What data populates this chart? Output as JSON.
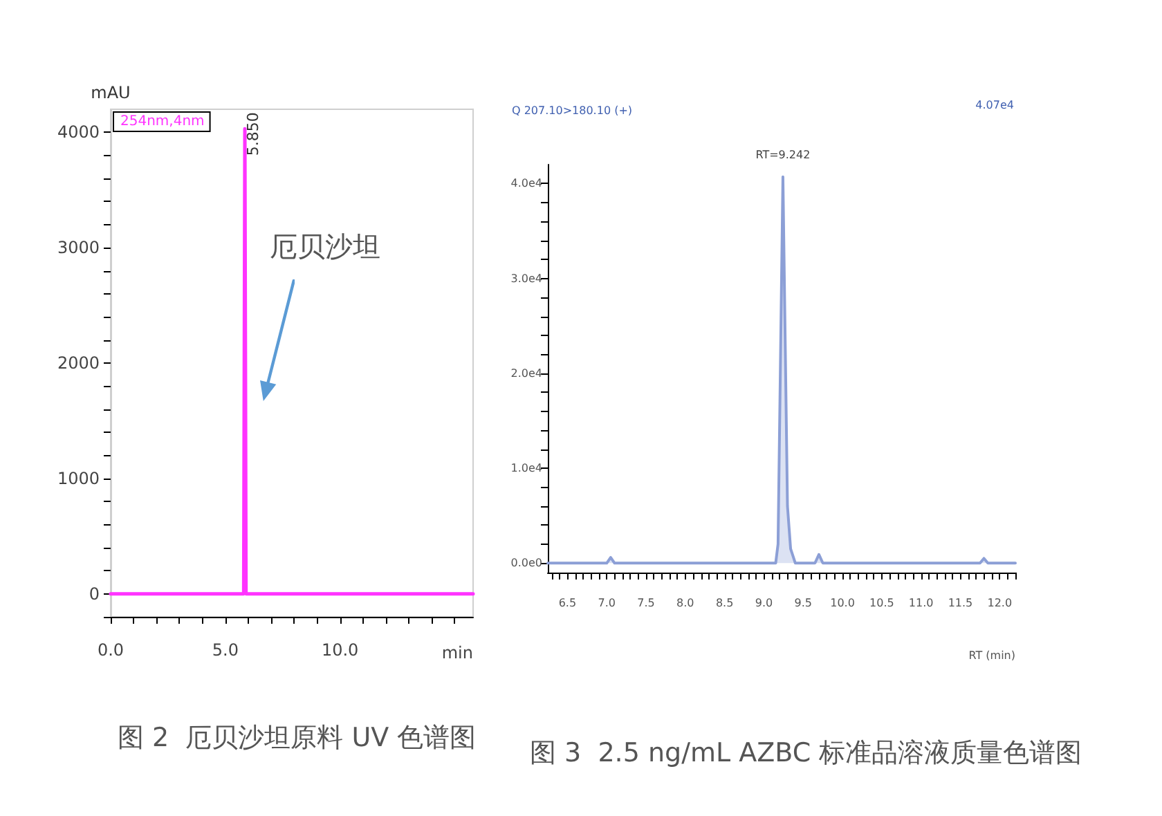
{
  "chart_data": [
    {
      "type": "line",
      "title": "图 2  厄贝沙坦原料 UV 色谱图",
      "xlabel": "min",
      "ylabel": "mAU",
      "legend": "top left",
      "series": [
        {
          "name": "254nm,4nm",
          "color": "#ff33ff",
          "x": [
            0,
            5.8,
            5.85,
            5.9,
            15.8
          ],
          "values": [
            0,
            0,
            4030,
            0,
            0
          ]
        }
      ],
      "xlim": [
        0,
        15.8
      ],
      "xticks": [
        {
          "value": 0,
          "label": "0.0"
        },
        {
          "value": 1,
          "label": null
        },
        {
          "value": 2,
          "label": null
        },
        {
          "value": 3,
          "label": null
        },
        {
          "value": 4,
          "label": null
        },
        {
          "value": 5,
          "label": "5.0"
        },
        {
          "value": 6,
          "label": null
        },
        {
          "value": 7,
          "label": null
        },
        {
          "value": 8,
          "label": null
        },
        {
          "value": 9,
          "label": null
        },
        {
          "value": 10,
          "label": "10.0"
        },
        {
          "value": 11,
          "label": null
        },
        {
          "value": 12,
          "label": null
        },
        {
          "value": 13,
          "label": null
        },
        {
          "value": 14,
          "label": null
        },
        {
          "value": 15,
          "label": null
        }
      ],
      "ylim": [
        -200,
        4200
      ],
      "yticks": [
        {
          "value": -200,
          "label": null
        },
        0,
        {
          "value": 200,
          "label": null
        },
        {
          "value": 400,
          "label": null
        },
        {
          "value": 600,
          "label": null
        },
        {
          "value": 800,
          "label": null
        },
        1000,
        {
          "value": 1200,
          "label": null
        },
        {
          "value": 1400,
          "label": null
        },
        {
          "value": 1600,
          "label": null
        },
        {
          "value": 1800,
          "label": null
        },
        2000,
        {
          "value": 2200,
          "label": null
        },
        {
          "value": 2400,
          "label": null
        },
        {
          "value": 2600,
          "label": null
        },
        {
          "value": 2800,
          "label": null
        },
        3000,
        {
          "value": 3200,
          "label": null
        },
        {
          "value": 3400,
          "label": null
        },
        {
          "value": 3600,
          "label": null
        },
        {
          "value": 3800,
          "label": null
        },
        4000
      ],
      "annotations": [
        {
          "text": "5.850",
          "x": 5.85,
          "y": 4030
        },
        "厄贝沙坦"
      ]
    },
    {
      "type": "area",
      "title": "图 3  2.5 ng/mL AZBC 标准品溶液质量色谱图",
      "subtitle": "Q 207.10>180.10 (+)",
      "xlabel": "RT (min)",
      "series": [
        {
          "color": "#8c9fd6",
          "x": [
            6.25,
            7.0,
            7.05,
            7.1,
            9.15,
            9.18,
            9.242,
            9.3,
            9.34,
            9.4,
            9.65,
            9.7,
            9.75,
            11.75,
            11.8,
            11.85,
            12.2
          ],
          "values": [
            0,
            0,
            600,
            0,
            0,
            2000,
            40700,
            6000,
            1500,
            0,
            0,
            900,
            0,
            0,
            500,
            0,
            0
          ]
        }
      ],
      "xlim": [
        6.25,
        12.2
      ],
      "xticks": [
        {
          "value": 6.3,
          "label": null
        },
        {
          "value": 6.4,
          "label": null
        },
        6.5,
        {
          "value": 6.6,
          "label": null
        },
        {
          "value": 6.7,
          "label": null
        },
        {
          "value": 6.8,
          "label": null
        },
        {
          "value": 6.9,
          "label": null
        },
        {
          "value": 7,
          "label": "7.0"
        },
        {
          "value": 7.1,
          "label": null
        },
        {
          "value": 7.2,
          "label": null
        },
        {
          "value": 7.3,
          "label": null
        },
        {
          "value": 7.4,
          "label": null
        },
        7.5,
        {
          "value": 7.6,
          "label": null
        },
        {
          "value": 7.7,
          "label": null
        },
        {
          "value": 7.8,
          "label": null
        },
        {
          "value": 7.9,
          "label": null
        },
        {
          "value": 8,
          "label": "8.0"
        },
        {
          "value": 8.1,
          "label": null
        },
        {
          "value": 8.2,
          "label": null
        },
        {
          "value": 8.3,
          "label": null
        },
        {
          "value": 8.4,
          "label": null
        },
        8.5,
        {
          "value": 8.6,
          "label": null
        },
        {
          "value": 8.7,
          "label": null
        },
        {
          "value": 8.8,
          "label": null
        },
        {
          "value": 8.9,
          "label": null
        },
        {
          "value": 9,
          "label": "9.0"
        },
        {
          "value": 9.1,
          "label": null
        },
        {
          "value": 9.2,
          "label": null
        },
        {
          "value": 9.3,
          "label": null
        },
        {
          "value": 9.4,
          "label": null
        },
        9.5,
        {
          "value": 9.6,
          "label": null
        },
        {
          "value": 9.7,
          "label": null
        },
        {
          "value": 9.8,
          "label": null
        },
        {
          "value": 9.9,
          "label": null
        },
        {
          "value": 10,
          "label": "10.0"
        },
        {
          "value": 10.1,
          "label": null
        },
        {
          "value": 10.2,
          "label": null
        },
        {
          "value": 10.3,
          "label": null
        },
        {
          "value": 10.4,
          "label": null
        },
        10.5,
        {
          "value": 10.6,
          "label": null
        },
        {
          "value": 10.7,
          "label": null
        },
        {
          "value": 10.8,
          "label": null
        },
        {
          "value": 10.9,
          "label": null
        },
        {
          "value": 11,
          "label": "11.0"
        },
        {
          "value": 11.1,
          "label": null
        },
        {
          "value": 11.2,
          "label": null
        },
        {
          "value": 11.3,
          "label": null
        },
        {
          "value": 11.4,
          "label": null
        },
        11.5,
        {
          "value": 11.6,
          "label": null
        },
        {
          "value": 11.7,
          "label": null
        },
        {
          "value": 11.8,
          "label": null
        },
        {
          "value": 11.9,
          "label": null
        },
        {
          "value": 12,
          "label": "12.0"
        },
        {
          "value": 12.1,
          "label": null
        },
        {
          "value": 12.2,
          "label": null
        }
      ],
      "ylim": [
        -1000,
        42000
      ],
      "yticks": [
        {
          "value": 0,
          "label": "0.0e0"
        },
        {
          "value": 2000,
          "label": null
        },
        {
          "value": 4000,
          "label": null
        },
        {
          "value": 6000,
          "label": null
        },
        {
          "value": 8000,
          "label": null
        },
        {
          "value": 10000,
          "label": "1.0e4"
        },
        {
          "value": 12000,
          "label": null
        },
        {
          "value": 14000,
          "label": null
        },
        {
          "value": 16000,
          "label": null
        },
        {
          "value": 18000,
          "label": null
        },
        {
          "value": 20000,
          "label": "2.0e4"
        },
        {
          "value": 22000,
          "label": null
        },
        {
          "value": 24000,
          "label": null
        },
        {
          "value": 26000,
          "label": null
        },
        {
          "value": 28000,
          "label": null
        },
        {
          "value": 30000,
          "label": "3.0e4"
        },
        {
          "value": 32000,
          "label": null
        },
        {
          "value": 34000,
          "label": null
        },
        {
          "value": 36000,
          "label": null
        },
        {
          "value": 38000,
          "label": null
        },
        {
          "value": 40000,
          "label": "4.0e4"
        }
      ],
      "annotations": [
        "4.07e4",
        {
          "text": "RT=9.242",
          "x": 9.242,
          "y": 40700
        }
      ]
    }
  ]
}
